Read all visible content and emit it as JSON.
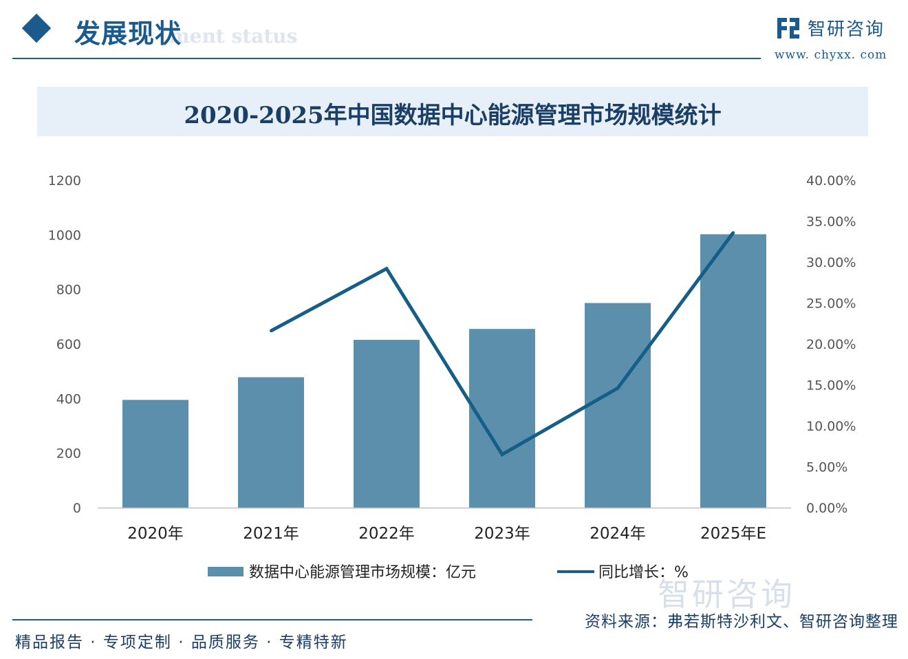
{
  "header": {
    "section_title": "发展现状",
    "section_subtitle": "ment status",
    "brand_name": "智研咨询",
    "brand_url": "www. chyxx. com",
    "brand_icon": "logo-mark-icon",
    "accent_color": "#1a5a8c"
  },
  "chart_data": {
    "type": "bar",
    "title": "2020-2025年中国数据中心能源管理市场规模统计",
    "categories": [
      "2020年",
      "2021年",
      "2022年",
      "2023年",
      "2024年",
      "2025年E"
    ],
    "series": [
      {
        "name": "数据中心能源管理市场规模：亿元",
        "type": "bar",
        "axis": "left",
        "color": "#5b8fab",
        "values": [
          395,
          478,
          615,
          655,
          750,
          1002
        ]
      },
      {
        "name": "同比增长：%",
        "type": "line",
        "axis": "right",
        "color": "#155e87",
        "values": [
          null,
          21.6,
          29.2,
          6.5,
          14.6,
          33.6
        ]
      }
    ],
    "y_left": {
      "min": 0,
      "max": 1200,
      "ticks": [
        "0",
        "200",
        "400",
        "600",
        "800",
        "1000",
        "1200"
      ]
    },
    "y_right": {
      "min": 0,
      "max": 40,
      "ticks": [
        "0.00%",
        "5.00%",
        "10.00%",
        "15.00%",
        "20.00%",
        "25.00%",
        "30.00%",
        "35.00%",
        "40.00%"
      ]
    },
    "grid": false,
    "legend_position": "bottom"
  },
  "legend": {
    "bar_label": "数据中心能源管理市场规模：亿元",
    "line_label": "同比增长：%"
  },
  "footer": {
    "source": "资料来源：弗若斯特沙利文、智研咨询整理",
    "slogan": "精品报告 · 专项定制 · 品质服务 · 专精特新",
    "watermark": "智研咨询"
  }
}
